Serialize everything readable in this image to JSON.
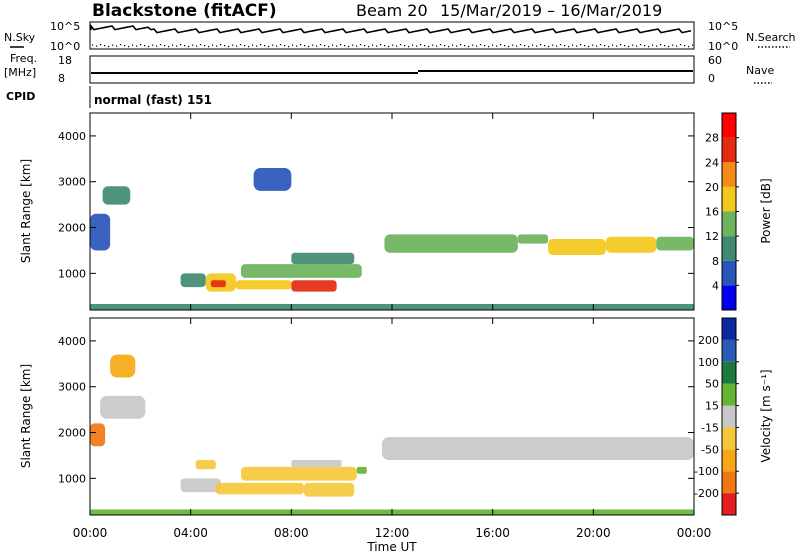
{
  "header": {
    "station": "Blackstone",
    "mode": "(fitACF)",
    "beam": "Beam 20",
    "dates": "15/Mar/2019 – 16/Mar/2019"
  },
  "aux": {
    "nsky_label": "N.Sky",
    "nsearch_label": "N.Search",
    "count_tick_top": "10^5",
    "count_tick_bottom": "10^0",
    "freq_label_1": "Freq.",
    "freq_label_2": "[MHz]",
    "freq_tick_top": "18",
    "freq_tick_bottom": "8",
    "nave_label": "Nave",
    "nave_tick_top": "60",
    "nave_tick_bottom": "0",
    "cpid_label": "CPID",
    "cpid_value": "normal (fast) 151"
  },
  "chart_data": [
    {
      "type": "heatmap",
      "ylabel": "Slant Range [km]",
      "ylim": [
        200,
        4500
      ],
      "yticks": [
        "1000",
        "2000",
        "3000",
        "4000"
      ],
      "ytick_values": [
        1000,
        2000,
        3000,
        4000
      ],
      "xlim_hours": [
        0,
        24
      ],
      "colorbar_label": "Power [dB]",
      "colorbar_ticks": [
        "4",
        "8",
        "12",
        "16",
        "20",
        "24",
        "28"
      ],
      "colorbar_colors": [
        "#0000ee",
        "#2a55b8",
        "#3f8a6f",
        "#6bb35c",
        "#f2c81c",
        "#f58a14",
        "#e42a12",
        "#ff0000"
      ],
      "regions": [
        {
          "t0": 0.0,
          "t1": 0.8,
          "r0": 1500,
          "r1": 2300,
          "value": 6
        },
        {
          "t0": 0.5,
          "t1": 1.6,
          "r0": 2500,
          "r1": 2900,
          "value": 8
        },
        {
          "t0": 3.6,
          "t1": 4.6,
          "r0": 700,
          "r1": 1000,
          "value": 8
        },
        {
          "t0": 4.6,
          "t1": 5.8,
          "r0": 600,
          "r1": 1000,
          "value": 18
        },
        {
          "t0": 4.8,
          "t1": 5.4,
          "r0": 700,
          "r1": 850,
          "value": 24
        },
        {
          "t0": 5.8,
          "t1": 8.0,
          "r0": 650,
          "r1": 850,
          "value": 16
        },
        {
          "t0": 8.0,
          "t1": 9.8,
          "r0": 600,
          "r1": 850,
          "value": 26
        },
        {
          "t0": 6.0,
          "t1": 10.8,
          "r0": 900,
          "r1": 1200,
          "value": 12
        },
        {
          "t0": 8.0,
          "t1": 10.5,
          "r0": 1200,
          "r1": 1450,
          "value": 10
        },
        {
          "t0": 6.5,
          "t1": 8.0,
          "r0": 2800,
          "r1": 3300,
          "value": 6
        },
        {
          "t0": 11.7,
          "t1": 17.0,
          "r0": 1450,
          "r1": 1850,
          "value": 14
        },
        {
          "t0": 17.0,
          "t1": 18.2,
          "r0": 1650,
          "r1": 1850,
          "value": 12
        },
        {
          "t0": 18.2,
          "t1": 20.5,
          "r0": 1400,
          "r1": 1750,
          "value": 16
        },
        {
          "t0": 20.5,
          "t1": 22.5,
          "r0": 1450,
          "r1": 1800,
          "value": 18
        },
        {
          "t0": 22.5,
          "t1": 24.0,
          "r0": 1500,
          "r1": 1800,
          "value": 14
        },
        {
          "t0": 0.0,
          "t1": 24.0,
          "r0": 200,
          "r1": 330,
          "value": 8
        }
      ]
    },
    {
      "type": "heatmap",
      "ylabel": "Slant Range [km]",
      "ylim": [
        200,
        4500
      ],
      "yticks": [
        "1000",
        "2000",
        "3000",
        "4000"
      ],
      "ytick_values": [
        1000,
        2000,
        3000,
        4000
      ],
      "xlim_hours": [
        0,
        24
      ],
      "xticks": [
        "00:00",
        "04:00",
        "08:00",
        "12:00",
        "16:00",
        "20:00",
        "00:00"
      ],
      "xtick_values": [
        0,
        4,
        8,
        12,
        16,
        20,
        24
      ],
      "xlabel": "Time UT",
      "colorbar_label": "Velocity [m s⁻¹]",
      "colorbar_ticks": [
        "-200",
        "-100",
        "-50",
        "-15",
        "15",
        "50",
        "100",
        "200"
      ],
      "colorbar_colors": [
        "#e41e1e",
        "#f07814",
        "#f5a814",
        "#f5c83c",
        "#c8c8c8",
        "#64b432",
        "#1e7a3c",
        "#2a5ab4",
        "#0a28a0"
      ],
      "regions": [
        {
          "t0": 0.0,
          "t1": 0.6,
          "r0": 1700,
          "r1": 2200,
          "value": -120
        },
        {
          "t0": 0.8,
          "t1": 1.8,
          "r0": 3200,
          "r1": 3700,
          "value": -100
        },
        {
          "t0": 0.4,
          "t1": 2.2,
          "r0": 2300,
          "r1": 2800,
          "value": 0
        },
        {
          "t0": 3.6,
          "t1": 5.2,
          "r0": 700,
          "r1": 1000,
          "value": 0
        },
        {
          "t0": 4.2,
          "t1": 5.0,
          "r0": 1200,
          "r1": 1400,
          "value": -40
        },
        {
          "t0": 5.0,
          "t1": 8.5,
          "r0": 650,
          "r1": 900,
          "value": -40
        },
        {
          "t0": 8.5,
          "t1": 10.5,
          "r0": 600,
          "r1": 900,
          "value": -40
        },
        {
          "t0": 6.0,
          "t1": 10.6,
          "r0": 950,
          "r1": 1250,
          "value": -40
        },
        {
          "t0": 10.6,
          "t1": 11.0,
          "r0": 1100,
          "r1": 1250,
          "value": 40
        },
        {
          "t0": 8.0,
          "t1": 10.0,
          "r0": 1250,
          "r1": 1400,
          "value": 0
        },
        {
          "t0": 11.6,
          "t1": 24.0,
          "r0": 1400,
          "r1": 1900,
          "value": 0
        },
        {
          "t0": 0.0,
          "t1": 24.0,
          "r0": 200,
          "r1": 320,
          "value": 20
        }
      ]
    }
  ]
}
